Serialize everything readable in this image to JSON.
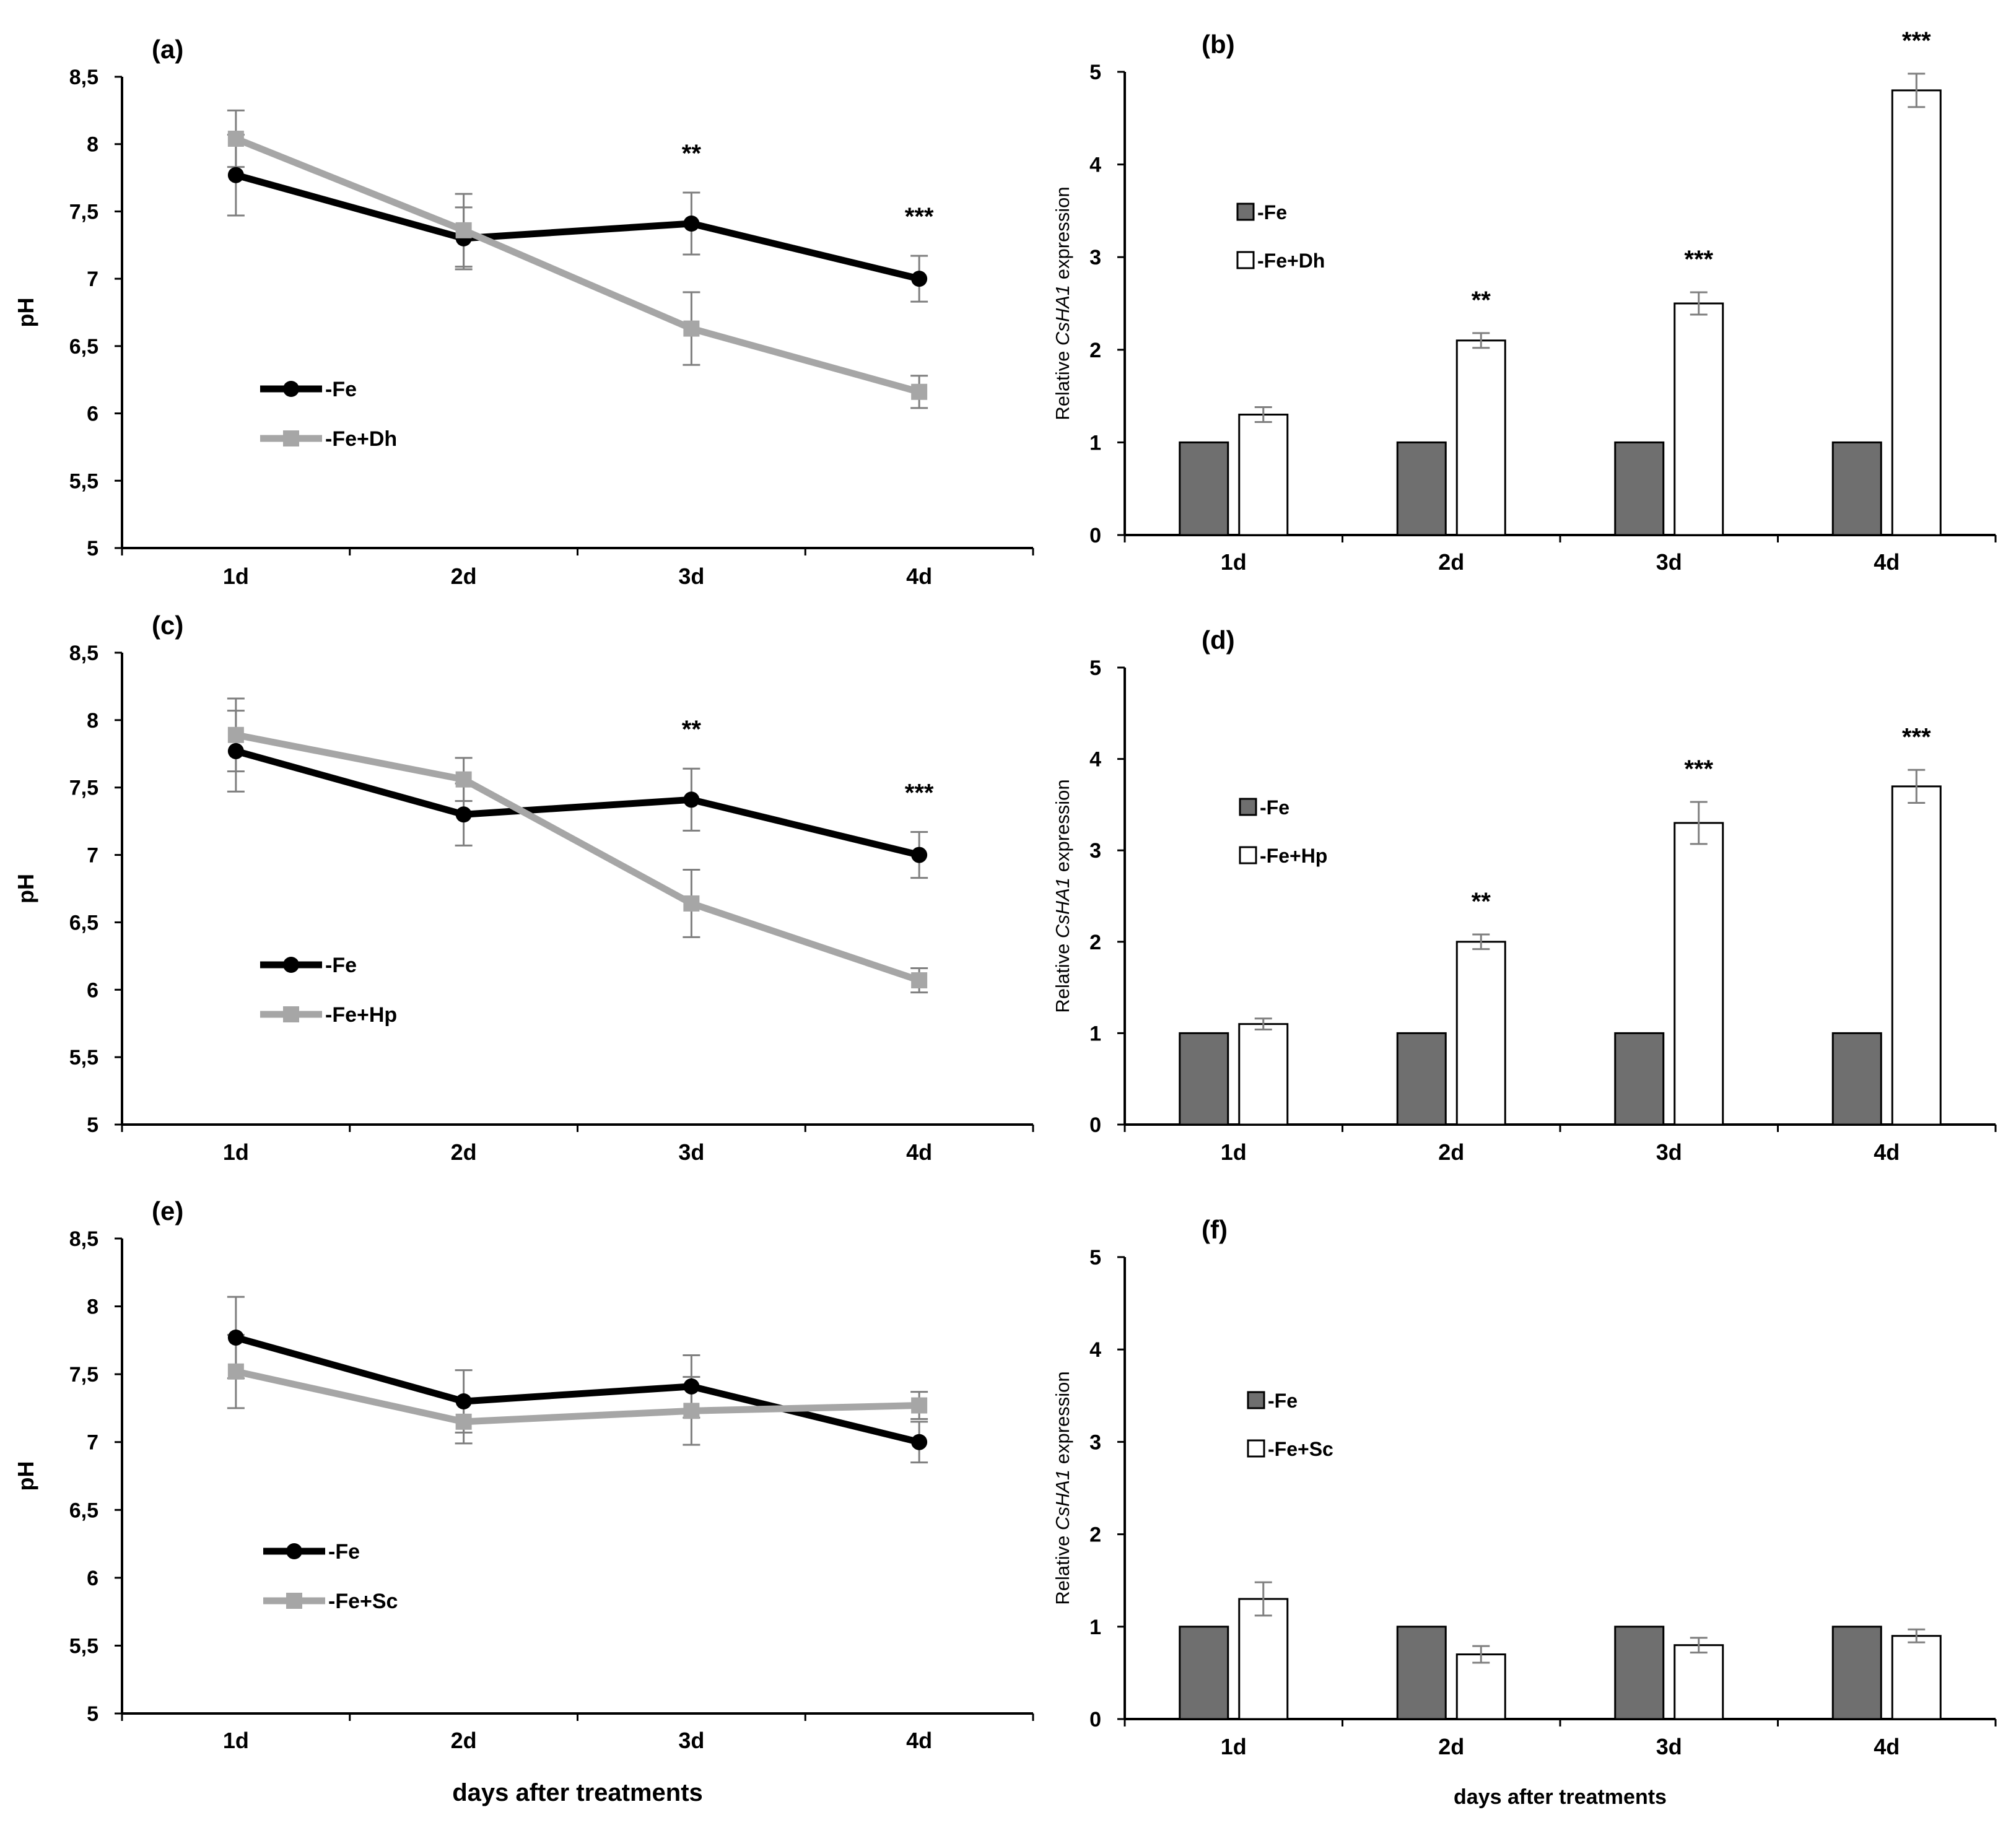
{
  "figure": {
    "x_axis_title": "days after treatments"
  },
  "colors": {
    "fe": "#000000",
    "treatment_line": "#a6a6a6",
    "fe_bar": "#6f6f6f",
    "treatment_bar": "#ffffff",
    "axis": "#000000",
    "error": "#7f7f7f"
  },
  "chart_data": [
    {
      "panel": "(a)",
      "type": "line",
      "categories": [
        "1d",
        "2d",
        "3d",
        "4d"
      ],
      "ylabel": "pH",
      "ylim": [
        5,
        8.5
      ],
      "yticks": [
        "5",
        "5,5",
        "6",
        "6,5",
        "7",
        "7,5",
        "8",
        "8,5"
      ],
      "series": [
        {
          "name": "-Fe",
          "values": [
            7.77,
            7.3,
            7.41,
            7.0
          ],
          "errors": [
            0.3,
            0.23,
            0.23,
            0.17
          ]
        },
        {
          "name": "-Fe+Dh",
          "values": [
            8.04,
            7.36,
            6.63,
            6.16
          ],
          "errors": [
            0.21,
            0.27,
            0.27,
            0.12
          ]
        }
      ],
      "annotations": [
        "",
        "",
        "**",
        "***"
      ]
    },
    {
      "panel": "(b)",
      "type": "bar",
      "categories": [
        "1d",
        "2d",
        "3d",
        "4d"
      ],
      "ylabel_prefix": "Relative ",
      "ylabel_gene": "CsHA1",
      "ylabel_suffix": " expression",
      "ylim": [
        0,
        5
      ],
      "yticks": [
        "0",
        "1",
        "2",
        "3",
        "4",
        "5"
      ],
      "series": [
        {
          "name": "-Fe",
          "values": [
            1,
            1,
            1,
            1
          ],
          "errors": [
            0,
            0,
            0,
            0
          ]
        },
        {
          "name": "-Fe+Dh",
          "values": [
            1.3,
            2.1,
            2.5,
            4.8
          ],
          "errors": [
            0.08,
            0.08,
            0.12,
            0.18
          ]
        }
      ],
      "annotations": [
        "",
        "**",
        "***",
        "***"
      ]
    },
    {
      "panel": "(c)",
      "type": "line",
      "categories": [
        "1d",
        "2d",
        "3d",
        "4d"
      ],
      "ylabel": "pH",
      "ylim": [
        5,
        8.5
      ],
      "yticks": [
        "5",
        "5,5",
        "6",
        "6,5",
        "7",
        "7,5",
        "8",
        "8,5"
      ],
      "series": [
        {
          "name": "-Fe",
          "values": [
            7.77,
            7.3,
            7.41,
            7.0
          ],
          "errors": [
            0.3,
            0.23,
            0.23,
            0.17
          ]
        },
        {
          "name": "-Fe+Hp",
          "values": [
            7.89,
            7.56,
            6.64,
            6.07
          ],
          "errors": [
            0.27,
            0.16,
            0.25,
            0.09
          ]
        }
      ],
      "annotations": [
        "",
        "",
        "**",
        "***"
      ]
    },
    {
      "panel": "(d)",
      "type": "bar",
      "categories": [
        "1d",
        "2d",
        "3d",
        "4d"
      ],
      "ylabel_prefix": "Relative ",
      "ylabel_gene": "CsHA1",
      "ylabel_suffix": " expression",
      "ylim": [
        0,
        5
      ],
      "yticks": [
        "0",
        "1",
        "2",
        "3",
        "4",
        "5"
      ],
      "series": [
        {
          "name": "-Fe",
          "values": [
            1,
            1,
            1,
            1
          ],
          "errors": [
            0,
            0,
            0,
            0
          ]
        },
        {
          "name": "-Fe+Hp",
          "values": [
            1.1,
            2.0,
            3.3,
            3.7
          ],
          "errors": [
            0.06,
            0.08,
            0.23,
            0.18
          ]
        }
      ],
      "annotations": [
        "",
        "**",
        "***",
        "***"
      ]
    },
    {
      "panel": "(e)",
      "type": "line",
      "categories": [
        "1d",
        "2d",
        "3d",
        "4d"
      ],
      "ylabel": "pH",
      "ylim": [
        5,
        8.5
      ],
      "yticks": [
        "5",
        "5,5",
        "6",
        "6,5",
        "7",
        "7,5",
        "8",
        "8,5"
      ],
      "xlabel": "days after treatments",
      "series": [
        {
          "name": "-Fe",
          "values": [
            7.77,
            7.3,
            7.41,
            7.0
          ],
          "errors": [
            0.3,
            0.23,
            0.23,
            0.15
          ]
        },
        {
          "name": "-Fe+Sc",
          "values": [
            7.52,
            7.15,
            7.23,
            7.27
          ],
          "errors": [
            0.27,
            0.16,
            0.25,
            0.1
          ]
        }
      ],
      "annotations": [
        "",
        "",
        "",
        ""
      ]
    },
    {
      "panel": "(f)",
      "type": "bar",
      "categories": [
        "1d",
        "2d",
        "3d",
        "4d"
      ],
      "ylabel_prefix": "Relative ",
      "ylabel_gene": "CsHA1",
      "ylabel_suffix": " expression",
      "ylim": [
        0,
        5
      ],
      "yticks": [
        "0",
        "1",
        "2",
        "3",
        "4",
        "5"
      ],
      "xlabel": "days after treatments",
      "series": [
        {
          "name": "-Fe",
          "values": [
            1,
            1,
            1,
            1
          ],
          "errors": [
            0,
            0,
            0,
            0
          ]
        },
        {
          "name": "-Fe+Sc",
          "values": [
            1.3,
            0.7,
            0.8,
            0.9
          ],
          "errors": [
            0.18,
            0.09,
            0.08,
            0.07
          ]
        }
      ],
      "annotations": [
        "",
        "",
        "",
        ""
      ]
    }
  ]
}
